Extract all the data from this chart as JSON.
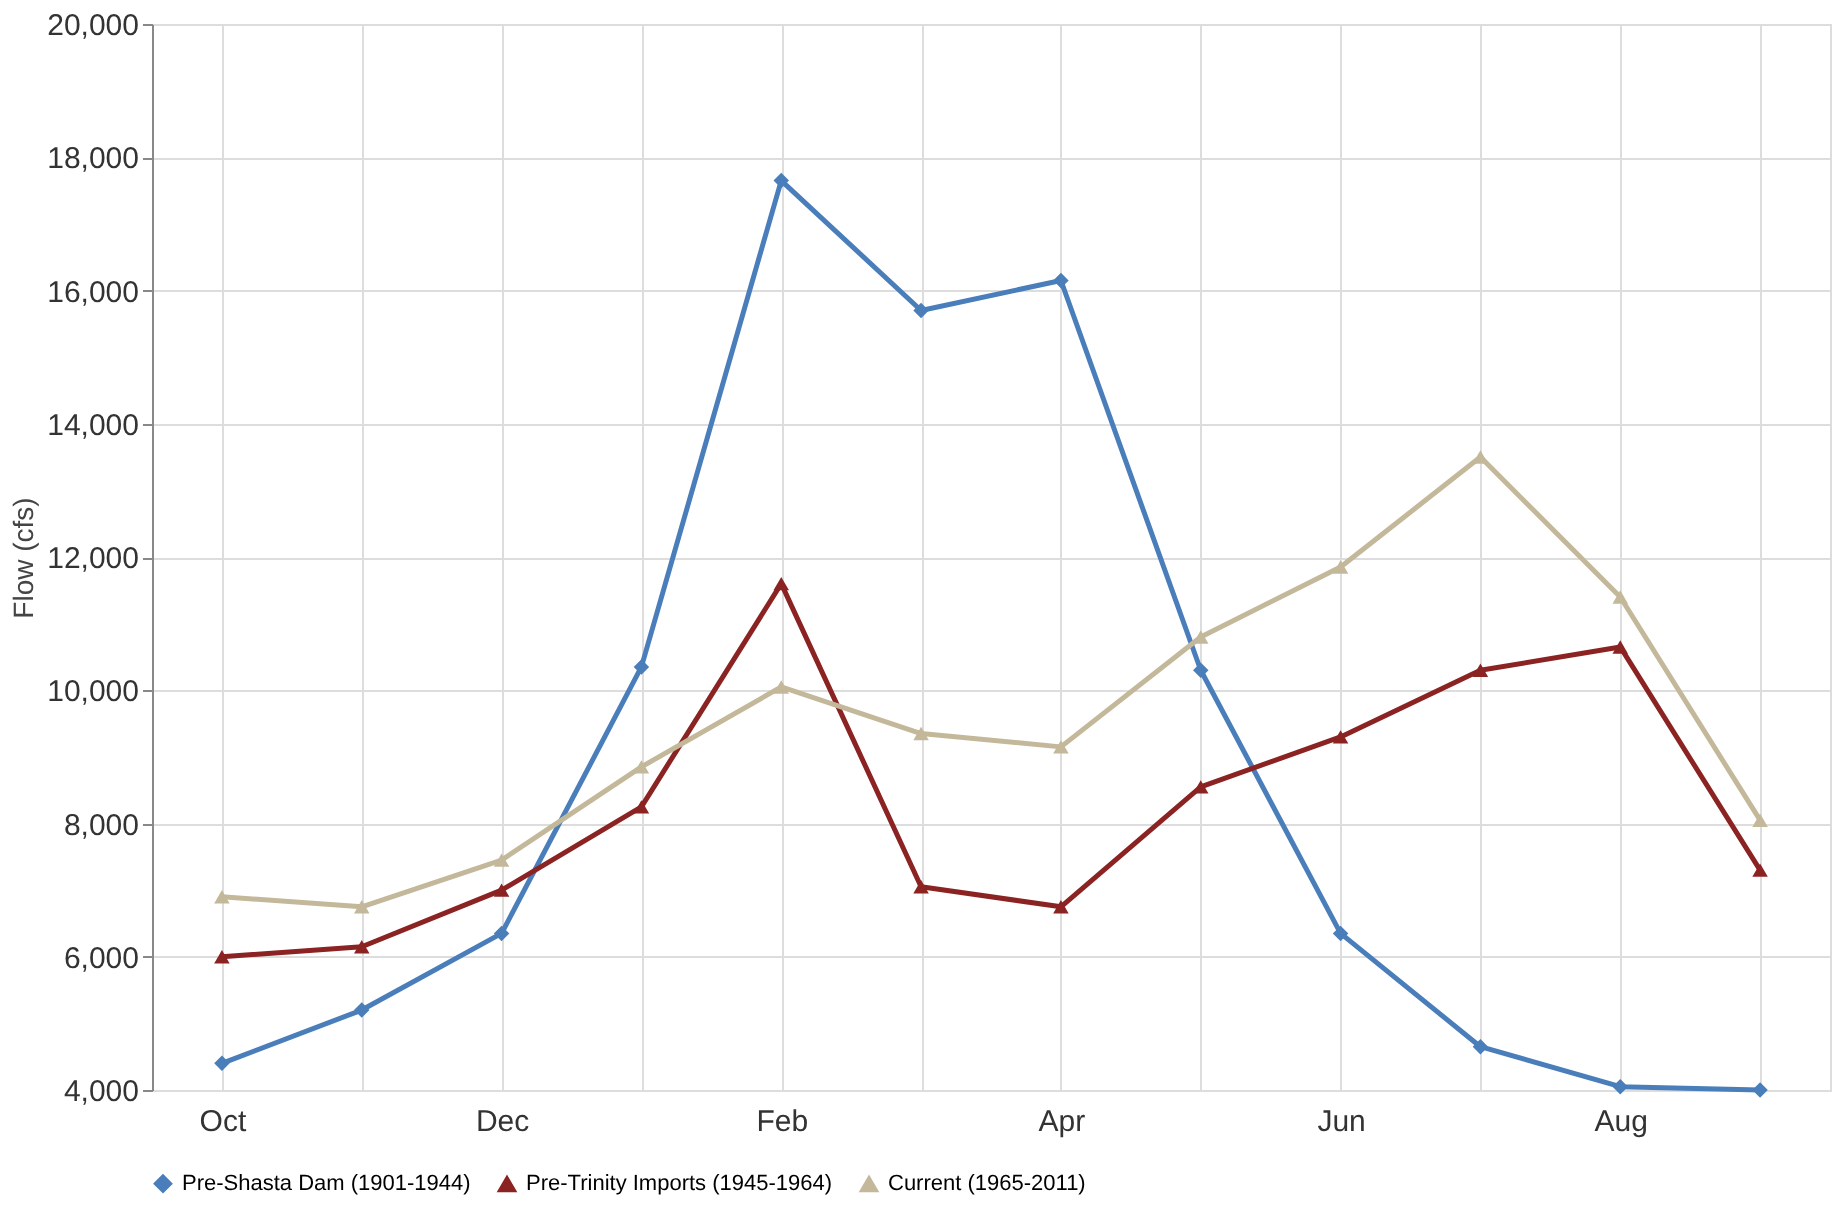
{
  "chart_data": {
    "type": "line",
    "ylabel": "Flow (cfs)",
    "categories": [
      "Oct",
      null,
      "Dec",
      null,
      "Feb",
      null,
      "Apr",
      null,
      "Jun",
      null,
      "Aug",
      null
    ],
    "series": [
      {
        "name": "Pre-Shasta Dam (1901-1944)",
        "color": "#4a7ebb",
        "marker": "diamond",
        "values": [
          4400,
          5200,
          6350,
          10350,
          17650,
          15700,
          16150,
          10300,
          6350,
          4650,
          4050,
          4000
        ]
      },
      {
        "name": "Pre-Trinity Imports (1945-1964)",
        "color": "#8b2323",
        "marker": "triangle",
        "values": [
          6000,
          6150,
          7000,
          8250,
          11600,
          7050,
          6750,
          8550,
          9300,
          10300,
          10650,
          7300
        ]
      },
      {
        "name": "Current (1965-2011)",
        "color": "#c4b89a",
        "marker": "triangle",
        "values": [
          6900,
          6750,
          7450,
          8850,
          10050,
          9350,
          9150,
          10800,
          11850,
          13500,
          11400,
          8050
        ]
      }
    ],
    "ylim": [
      4000,
      20000
    ],
    "yticks": [
      {
        "value": 4000,
        "label": "4,000"
      },
      {
        "value": 6000,
        "label": "6,000"
      },
      {
        "value": 8000,
        "label": "8,000"
      },
      {
        "value": 10000,
        "label": "10,000"
      },
      {
        "value": 12000,
        "label": "12,000"
      },
      {
        "value": 14000,
        "label": "14,000"
      },
      {
        "value": 16000,
        "label": "16,000"
      },
      {
        "value": 18000,
        "label": "18,000"
      },
      {
        "value": 20000,
        "label": "20,000"
      }
    ],
    "grid": true,
    "legend": "bottom",
    "line_style": "solid"
  }
}
